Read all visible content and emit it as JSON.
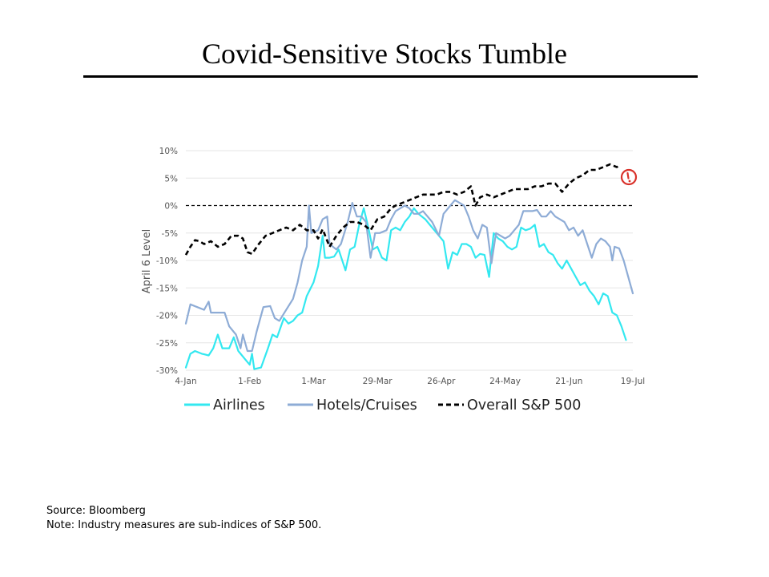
{
  "title": "Covid-Sensitive Stocks Tumble",
  "footer": {
    "source": "Source: Bloomberg",
    "note": "Note: Industry measures are sub-indices of S&P 500."
  },
  "chart_data": {
    "type": "line",
    "ylabel": "April 6 Level",
    "ylim": [
      -30,
      10
    ],
    "y_ticks": [
      10,
      5,
      0,
      -5,
      -10,
      -15,
      -20,
      -25,
      -30
    ],
    "y_tick_labels": [
      "10%",
      "5%",
      "0%",
      "-5%",
      "-10%",
      "-15%",
      "-20%",
      "-25%",
      "-30%"
    ],
    "x_tick_labels": [
      "4-Jan",
      "1-Feb",
      "1-Mar",
      "29-Mar",
      "26-Apr",
      "24-May",
      "21-Jun",
      "19-Jul"
    ],
    "x_range": [
      "2021-01-04",
      "2021-07-19"
    ],
    "grid": true,
    "reference_line": 0,
    "legend_position": "bottom",
    "alert_marker": "warning-icon",
    "series": [
      {
        "name": "Airlines",
        "color": "#33e8f0",
        "style": "solid",
        "points": [
          [
            "2021-01-04",
            -29.5
          ],
          [
            "2021-01-06",
            -27.0
          ],
          [
            "2021-01-08",
            -26.5
          ],
          [
            "2021-01-11",
            -27.0
          ],
          [
            "2021-01-14",
            -27.3
          ],
          [
            "2021-01-16",
            -26.0
          ],
          [
            "2021-01-18",
            -23.5
          ],
          [
            "2021-01-20",
            -26.0
          ],
          [
            "2021-01-23",
            -26.0
          ],
          [
            "2021-01-25",
            -24.0
          ],
          [
            "2021-01-27",
            -26.5
          ],
          [
            "2021-01-30",
            -28.0
          ],
          [
            "2021-02-01",
            -29.0
          ],
          [
            "2021-02-02",
            -27.0
          ],
          [
            "2021-02-03",
            -29.8
          ],
          [
            "2021-02-06",
            -29.5
          ],
          [
            "2021-02-09",
            -26.0
          ],
          [
            "2021-02-11",
            -23.5
          ],
          [
            "2021-02-13",
            -24.0
          ],
          [
            "2021-02-16",
            -20.5
          ],
          [
            "2021-02-18",
            -21.5
          ],
          [
            "2021-02-20",
            -21.0
          ],
          [
            "2021-02-22",
            -20.0
          ],
          [
            "2021-02-24",
            -19.5
          ],
          [
            "2021-02-26",
            -16.5
          ],
          [
            "2021-03-01",
            -14.0
          ],
          [
            "2021-03-03",
            -11.0
          ],
          [
            "2021-03-05",
            -5.5
          ],
          [
            "2021-03-06",
            -9.5
          ],
          [
            "2021-03-08",
            -9.5
          ],
          [
            "2021-03-10",
            -9.3
          ],
          [
            "2021-03-12",
            -8.0
          ],
          [
            "2021-03-15",
            -11.8
          ],
          [
            "2021-03-17",
            -8.0
          ],
          [
            "2021-03-19",
            -7.5
          ],
          [
            "2021-03-21",
            -3.5
          ],
          [
            "2021-03-23",
            -0.5
          ],
          [
            "2021-03-25",
            -4.0
          ],
          [
            "2021-03-27",
            -8.0
          ],
          [
            "2021-03-29",
            -7.5
          ],
          [
            "2021-03-31",
            -9.5
          ],
          [
            "2021-04-02",
            -10.0
          ],
          [
            "2021-04-04",
            -4.5
          ],
          [
            "2021-04-06",
            -4.0
          ],
          [
            "2021-04-08",
            -4.5
          ],
          [
            "2021-04-10",
            -3.0
          ],
          [
            "2021-04-12",
            -2.0
          ],
          [
            "2021-04-14",
            -0.5
          ],
          [
            "2021-04-16",
            -1.5
          ],
          [
            "2021-04-19",
            -2.5
          ],
          [
            "2021-04-21",
            -3.5
          ],
          [
            "2021-04-23",
            -4.5
          ],
          [
            "2021-04-25",
            -5.5
          ],
          [
            "2021-04-27",
            -6.5
          ],
          [
            "2021-04-29",
            -11.5
          ],
          [
            "2021-05-01",
            -8.5
          ],
          [
            "2021-05-03",
            -9.0
          ],
          [
            "2021-05-05",
            -7.0
          ],
          [
            "2021-05-07",
            -7.0
          ],
          [
            "2021-05-09",
            -7.5
          ],
          [
            "2021-05-11",
            -9.5
          ],
          [
            "2021-05-13",
            -8.8
          ],
          [
            "2021-05-15",
            -9.0
          ],
          [
            "2021-05-17",
            -13.0
          ],
          [
            "2021-05-19",
            -5.0
          ],
          [
            "2021-05-21",
            -6.0
          ],
          [
            "2021-05-23",
            -6.5
          ],
          [
            "2021-05-25",
            -7.5
          ],
          [
            "2021-05-27",
            -8.0
          ],
          [
            "2021-05-29",
            -7.5
          ],
          [
            "2021-05-31",
            -4.0
          ],
          [
            "2021-06-02",
            -4.5
          ],
          [
            "2021-06-04",
            -4.2
          ],
          [
            "2021-06-06",
            -3.5
          ],
          [
            "2021-06-08",
            -7.5
          ],
          [
            "2021-06-10",
            -7.0
          ],
          [
            "2021-06-12",
            -8.5
          ],
          [
            "2021-06-14",
            -9.0
          ],
          [
            "2021-06-16",
            -10.5
          ],
          [
            "2021-06-18",
            -11.5
          ],
          [
            "2021-06-20",
            -10.0
          ],
          [
            "2021-06-22",
            -11.5
          ],
          [
            "2021-06-24",
            -13.0
          ],
          [
            "2021-06-26",
            -14.5
          ],
          [
            "2021-06-28",
            -14.0
          ],
          [
            "2021-06-30",
            -15.5
          ],
          [
            "2021-07-02",
            -16.5
          ],
          [
            "2021-07-04",
            -18.0
          ],
          [
            "2021-07-06",
            -16.0
          ],
          [
            "2021-07-08",
            -16.5
          ],
          [
            "2021-07-10",
            -19.5
          ],
          [
            "2021-07-12",
            -20.0
          ],
          [
            "2021-07-14",
            -22.0
          ],
          [
            "2021-07-16",
            -24.5
          ]
        ]
      },
      {
        "name": "Hotels/Cruises",
        "color": "#8eacd6",
        "style": "solid",
        "points": [
          [
            "2021-01-04",
            -21.5
          ],
          [
            "2021-01-06",
            -18.0
          ],
          [
            "2021-01-09",
            -18.5
          ],
          [
            "2021-01-12",
            -19.0
          ],
          [
            "2021-01-14",
            -17.5
          ],
          [
            "2021-01-15",
            -19.5
          ],
          [
            "2021-01-18",
            -19.5
          ],
          [
            "2021-01-21",
            -19.5
          ],
          [
            "2021-01-23",
            -22.0
          ],
          [
            "2021-01-26",
            -23.5
          ],
          [
            "2021-01-28",
            -26.0
          ],
          [
            "2021-01-29",
            -23.5
          ],
          [
            "2021-01-31",
            -26.5
          ],
          [
            "2021-02-02",
            -26.5
          ],
          [
            "2021-02-04",
            -23.0
          ],
          [
            "2021-02-07",
            -18.5
          ],
          [
            "2021-02-10",
            -18.3
          ],
          [
            "2021-02-12",
            -20.5
          ],
          [
            "2021-02-14",
            -21.0
          ],
          [
            "2021-02-17",
            -19.0
          ],
          [
            "2021-02-20",
            -17.0
          ],
          [
            "2021-02-22",
            -14.0
          ],
          [
            "2021-02-24",
            -10.0
          ],
          [
            "2021-02-26",
            -7.5
          ],
          [
            "2021-02-27",
            0.0
          ],
          [
            "2021-02-28",
            -5.0
          ],
          [
            "2021-03-03",
            -4.5
          ],
          [
            "2021-03-05",
            -2.5
          ],
          [
            "2021-03-07",
            -2.0
          ],
          [
            "2021-03-08",
            -7.0
          ],
          [
            "2021-03-11",
            -8.0
          ],
          [
            "2021-03-13",
            -7.0
          ],
          [
            "2021-03-16",
            -3.0
          ],
          [
            "2021-03-18",
            0.5
          ],
          [
            "2021-03-20",
            -2.0
          ],
          [
            "2021-03-22",
            -2.0
          ],
          [
            "2021-03-24",
            -3.0
          ],
          [
            "2021-03-26",
            -9.5
          ],
          [
            "2021-03-28",
            -5.0
          ],
          [
            "2021-03-30",
            -5.0
          ],
          [
            "2021-04-02",
            -4.5
          ],
          [
            "2021-04-04",
            -2.5
          ],
          [
            "2021-04-06",
            -1.0
          ],
          [
            "2021-04-08",
            -0.5
          ],
          [
            "2021-04-10",
            0.0
          ],
          [
            "2021-04-12",
            -0.5
          ],
          [
            "2021-04-14",
            -1.5
          ],
          [
            "2021-04-16",
            -1.5
          ],
          [
            "2021-04-18",
            -1.0
          ],
          [
            "2021-04-20",
            -2.0
          ],
          [
            "2021-04-22",
            -3.0
          ],
          [
            "2021-04-25",
            -5.5
          ],
          [
            "2021-04-27",
            -1.5
          ],
          [
            "2021-04-29",
            -0.5
          ],
          [
            "2021-05-02",
            1.0
          ],
          [
            "2021-05-04",
            0.5
          ],
          [
            "2021-05-06",
            0.0
          ],
          [
            "2021-05-08",
            -2.0
          ],
          [
            "2021-05-10",
            -4.5
          ],
          [
            "2021-05-12",
            -6.0
          ],
          [
            "2021-05-14",
            -3.5
          ],
          [
            "2021-05-16",
            -4.0
          ],
          [
            "2021-05-18",
            -10.5
          ],
          [
            "2021-05-20",
            -5.0
          ],
          [
            "2021-05-22",
            -5.5
          ],
          [
            "2021-05-24",
            -6.0
          ],
          [
            "2021-05-26",
            -5.5
          ],
          [
            "2021-05-28",
            -4.5
          ],
          [
            "2021-05-30",
            -3.5
          ],
          [
            "2021-06-01",
            -1.0
          ],
          [
            "2021-06-03",
            -1.0
          ],
          [
            "2021-06-05",
            -1.0
          ],
          [
            "2021-06-07",
            -0.8
          ],
          [
            "2021-06-09",
            -2.0
          ],
          [
            "2021-06-11",
            -2.0
          ],
          [
            "2021-06-13",
            -1.0
          ],
          [
            "2021-06-15",
            -2.0
          ],
          [
            "2021-06-17",
            -2.5
          ],
          [
            "2021-06-19",
            -3.0
          ],
          [
            "2021-06-21",
            -4.5
          ],
          [
            "2021-06-23",
            -4.0
          ],
          [
            "2021-06-25",
            -5.5
          ],
          [
            "2021-06-27",
            -4.5
          ],
          [
            "2021-06-29",
            -7.0
          ],
          [
            "2021-07-01",
            -9.5
          ],
          [
            "2021-07-03",
            -7.0
          ],
          [
            "2021-07-05",
            -6.0
          ],
          [
            "2021-07-07",
            -6.5
          ],
          [
            "2021-07-09",
            -7.5
          ],
          [
            "2021-07-10",
            -10.0
          ],
          [
            "2021-07-11",
            -7.5
          ],
          [
            "2021-07-13",
            -7.8
          ],
          [
            "2021-07-15",
            -10.0
          ],
          [
            "2021-07-17",
            -13.0
          ],
          [
            "2021-07-19",
            -16.0
          ]
        ]
      },
      {
        "name": "Overall S&P 500",
        "color": "#000000",
        "style": "dashed",
        "points": [
          [
            "2021-01-04",
            -9.0
          ],
          [
            "2021-01-06",
            -7.5
          ],
          [
            "2021-01-08",
            -6.3
          ],
          [
            "2021-01-10",
            -6.5
          ],
          [
            "2021-01-12",
            -7.0
          ],
          [
            "2021-01-15",
            -6.5
          ],
          [
            "2021-01-18",
            -7.5
          ],
          [
            "2021-01-21",
            -7.0
          ],
          [
            "2021-01-24",
            -5.5
          ],
          [
            "2021-01-27",
            -5.5
          ],
          [
            "2021-01-29",
            -6.0
          ],
          [
            "2021-01-31",
            -8.5
          ],
          [
            "2021-02-02",
            -8.8
          ],
          [
            "2021-02-05",
            -7.0
          ],
          [
            "2021-02-08",
            -5.5
          ],
          [
            "2021-02-11",
            -5.0
          ],
          [
            "2021-02-14",
            -4.5
          ],
          [
            "2021-02-17",
            -4.0
          ],
          [
            "2021-02-20",
            -4.5
          ],
          [
            "2021-02-23",
            -3.5
          ],
          [
            "2021-02-26",
            -4.5
          ],
          [
            "2021-03-01",
            -4.5
          ],
          [
            "2021-03-03",
            -6.0
          ],
          [
            "2021-03-05",
            -4.3
          ],
          [
            "2021-03-08",
            -7.5
          ],
          [
            "2021-03-11",
            -5.5
          ],
          [
            "2021-03-14",
            -4.0
          ],
          [
            "2021-03-17",
            -3.0
          ],
          [
            "2021-03-20",
            -3.0
          ],
          [
            "2021-03-23",
            -3.5
          ],
          [
            "2021-03-26",
            -4.5
          ],
          [
            "2021-03-29",
            -2.5
          ],
          [
            "2021-04-01",
            -2.0
          ],
          [
            "2021-04-04",
            -0.5
          ],
          [
            "2021-04-06",
            0.0
          ],
          [
            "2021-04-09",
            0.5
          ],
          [
            "2021-04-12",
            1.0
          ],
          [
            "2021-04-15",
            1.5
          ],
          [
            "2021-04-18",
            2.0
          ],
          [
            "2021-04-21",
            2.0
          ],
          [
            "2021-04-24",
            2.0
          ],
          [
            "2021-04-27",
            2.5
          ],
          [
            "2021-04-30",
            2.5
          ],
          [
            "2021-05-03",
            2.0
          ],
          [
            "2021-05-06",
            2.5
          ],
          [
            "2021-05-09",
            3.5
          ],
          [
            "2021-05-11",
            0.0
          ],
          [
            "2021-05-13",
            1.5
          ],
          [
            "2021-05-16",
            2.0
          ],
          [
            "2021-05-19",
            1.5
          ],
          [
            "2021-05-22",
            2.0
          ],
          [
            "2021-05-25",
            2.5
          ],
          [
            "2021-05-28",
            3.0
          ],
          [
            "2021-05-31",
            3.0
          ],
          [
            "2021-06-03",
            3.0
          ],
          [
            "2021-06-06",
            3.5
          ],
          [
            "2021-06-09",
            3.5
          ],
          [
            "2021-06-12",
            4.0
          ],
          [
            "2021-06-15",
            4.0
          ],
          [
            "2021-06-18",
            2.5
          ],
          [
            "2021-06-21",
            4.0
          ],
          [
            "2021-06-24",
            5.0
          ],
          [
            "2021-06-27",
            5.5
          ],
          [
            "2021-06-30",
            6.5
          ],
          [
            "2021-07-03",
            6.5
          ],
          [
            "2021-07-06",
            7.0
          ],
          [
            "2021-07-09",
            7.5
          ],
          [
            "2021-07-12",
            7.0
          ],
          [
            "2021-07-13",
            7.3
          ]
        ]
      }
    ]
  }
}
